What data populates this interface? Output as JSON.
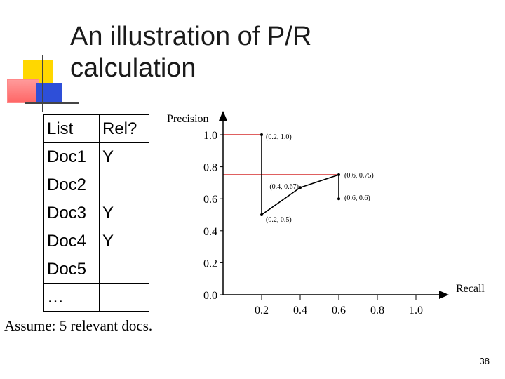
{
  "slide": {
    "title_line1": "An illustration of P/R",
    "title_line2": "calculation",
    "page_number": "38",
    "assumption": "Assume: 5 relevant docs."
  },
  "table": {
    "headers": [
      "List",
      "Rel?"
    ],
    "rows": [
      [
        "Doc1",
        "Y"
      ],
      [
        "Doc2",
        ""
      ],
      [
        "Doc3",
        "Y"
      ],
      [
        "Doc4",
        "Y"
      ],
      [
        "Doc5",
        ""
      ],
      [
        "…",
        ""
      ]
    ]
  },
  "colors": {
    "deco_yellow": "#ffd700",
    "deco_red": "#ff5555",
    "deco_blue": "#2e4fd8",
    "ref_line_red": "#cc0000"
  },
  "chart_data": {
    "type": "line",
    "xlabel": "Recall",
    "ylabel": "Precision",
    "x_ticks": [
      "0.2",
      "0.4",
      "0.6",
      "0.8",
      "1.0"
    ],
    "y_ticks": [
      "0.0",
      "0.2",
      "0.4",
      "0.6",
      "0.8",
      "1.0"
    ],
    "xlim": [
      0,
      1.0
    ],
    "ylim": [
      0,
      1.0
    ],
    "points": [
      {
        "x": 0.2,
        "y": 1.0,
        "label": "(0.2, 1.0)"
      },
      {
        "x": 0.2,
        "y": 0.5,
        "label": "(0.2, 0.5)"
      },
      {
        "x": 0.4,
        "y": 0.67,
        "label": "(0.4, 0.67)"
      },
      {
        "x": 0.6,
        "y": 0.75,
        "label": "(0.6, 0.75)"
      },
      {
        "x": 0.6,
        "y": 0.6,
        "label": "(0.6, 0.6)"
      }
    ],
    "path_order": [
      0,
      1,
      2,
      3,
      4
    ],
    "reference_lines": [
      {
        "y": 1.0,
        "x_to": 0.2
      },
      {
        "y": 0.75,
        "x_to": 0.6
      }
    ]
  }
}
